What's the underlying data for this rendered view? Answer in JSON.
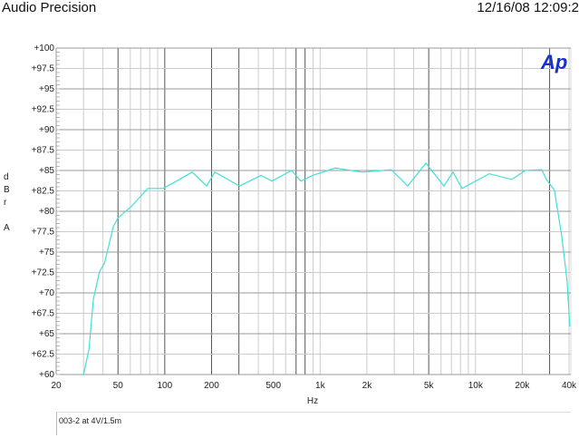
{
  "header": {
    "title": "Audio Precision",
    "timestamp": "12/16/08 12:09:2"
  },
  "logo": "Ap",
  "chart_data": {
    "type": "line",
    "xlabel": "Hz",
    "ylabel": [
      "d",
      "B",
      "r",
      "",
      "A"
    ],
    "xscale": "log",
    "xlim": [
      20,
      40000
    ],
    "ylim": [
      60,
      100
    ],
    "grid": true,
    "xticks": [
      20,
      50,
      100,
      200,
      500,
      1000,
      2000,
      5000,
      10000,
      20000,
      40000
    ],
    "xtick_labels": [
      "20",
      "50",
      "100",
      "200",
      "500",
      "1k",
      "2k",
      "5k",
      "10k",
      "20k",
      "40k"
    ],
    "yticks": [
      60,
      62.5,
      65,
      67.5,
      70,
      72.5,
      75,
      77.5,
      80,
      82.5,
      85,
      87.5,
      90,
      92.5,
      95,
      97.5,
      100
    ],
    "ytick_labels": [
      "+60",
      "+62.5",
      "+65",
      "+67.5",
      "+70",
      "+72.5",
      "+75",
      "+77.5",
      "+80",
      "+82.5",
      "+85",
      "+87.5",
      "+90",
      "+92.5",
      "+95",
      "+97.5",
      "+100"
    ],
    "series": [
      {
        "color": "#40e0d8",
        "x": [
          30,
          32.5,
          34.7,
          38,
          41,
          46.6,
          50,
          61,
          77.6,
          97.5,
          119,
          150,
          186,
          210,
          303,
          416,
          489,
          656,
          750,
          894,
          1250,
          1870,
          2870,
          3660,
          4790,
          6260,
          7160,
          8190,
          12250,
          17140,
          20950,
          26700,
          28600,
          32200,
          35900,
          38900,
          40450
        ],
        "y": [
          60,
          63.1,
          69.2,
          72.6,
          73.7,
          78.1,
          79.2,
          80.6,
          82.8,
          82.8,
          83.7,
          84.8,
          83.1,
          84.8,
          83.1,
          84.4,
          83.7,
          85,
          83.7,
          84.4,
          85.3,
          84.8,
          85.1,
          83.1,
          85.9,
          83.1,
          84.8,
          82.8,
          84.6,
          83.9,
          85,
          85.1,
          83.9,
          82.6,
          77,
          71.4,
          65.9
        ]
      }
    ],
    "legend": [
      "003-2 at 4V/1.5m"
    ]
  }
}
